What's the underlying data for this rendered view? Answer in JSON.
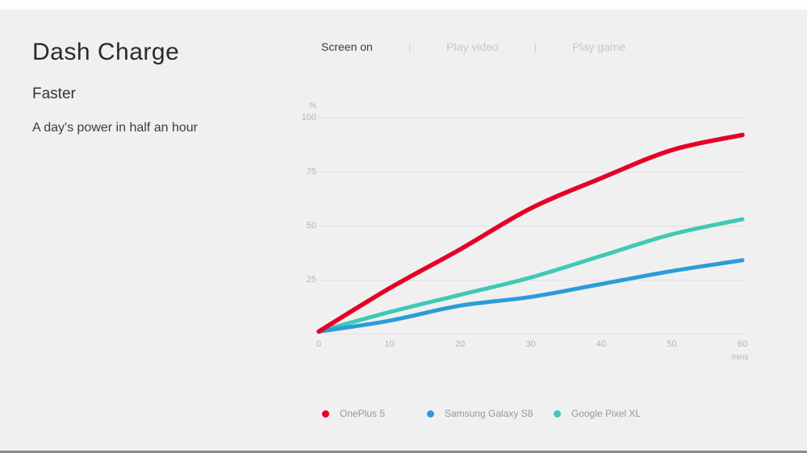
{
  "page": {
    "background": "#f0f0f1",
    "top_strip_color": "#fdfdfe",
    "bottom_bar_color": "#8b8b8e"
  },
  "header": {
    "title": "Dash Charge",
    "subtitle": "Faster",
    "tagline": "A day's power in half an hour"
  },
  "tabs": {
    "separator": "|",
    "items": [
      {
        "label": "Screen on",
        "active": true
      },
      {
        "label": "Play video",
        "active": false
      },
      {
        "label": "Play game",
        "active": false
      }
    ]
  },
  "chart_data": {
    "type": "line",
    "title": "",
    "xlabel": "mins",
    "ylabel": "%",
    "x": [
      0,
      10,
      20,
      30,
      40,
      50,
      60
    ],
    "xticks": [
      0,
      10,
      20,
      30,
      40,
      50,
      60
    ],
    "yticks": [
      25,
      50,
      75,
      100
    ],
    "xlim": [
      0,
      60
    ],
    "ylim": [
      0,
      100
    ],
    "grid": "horizontal",
    "legend_position": "bottom",
    "series": [
      {
        "name": "OnePlus 5",
        "color": "#e60026",
        "values": [
          1,
          21,
          39,
          58,
          72,
          85,
          92
        ]
      },
      {
        "name": "Samsung Galaxy S8",
        "color": "#2b9cd8",
        "values": [
          1,
          6,
          13,
          17,
          23,
          29,
          34
        ]
      },
      {
        "name": "Google Pixel XL",
        "color": "#41c8b6",
        "values": [
          1,
          10,
          18,
          26,
          36,
          46,
          53
        ]
      }
    ]
  }
}
